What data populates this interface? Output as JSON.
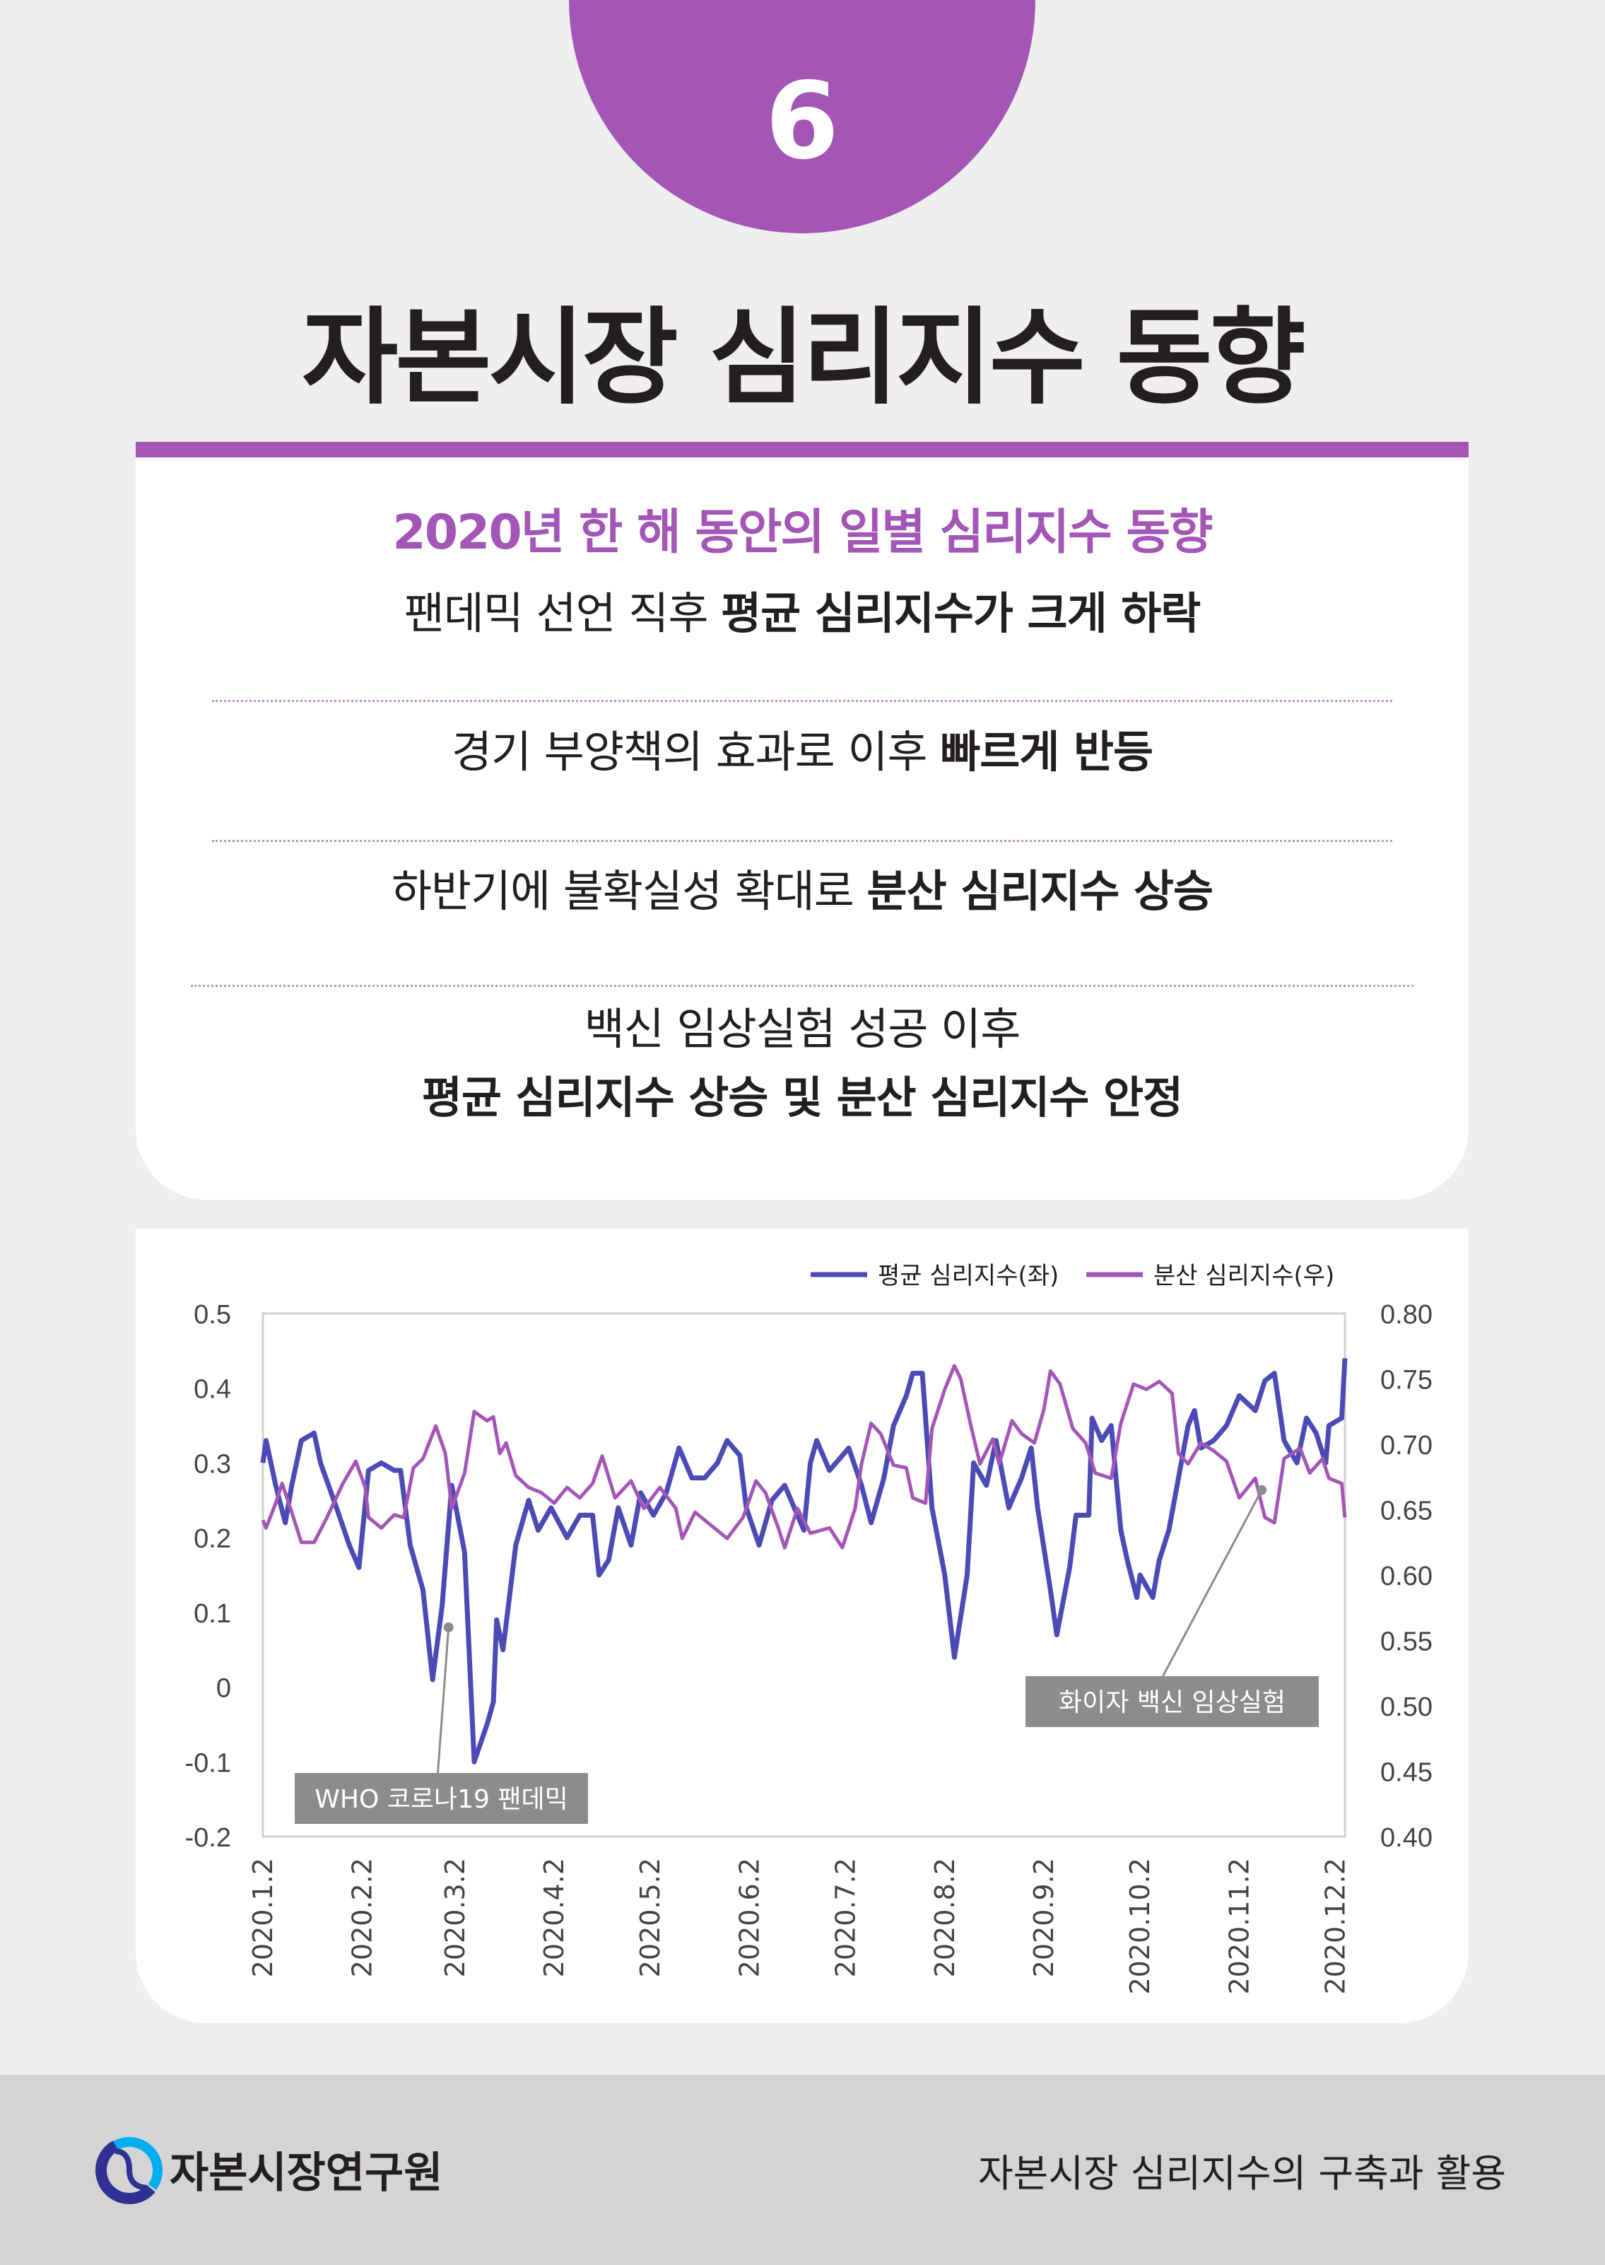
{
  "header": {
    "number": "6",
    "title": "자본시장 심리지수 동향"
  },
  "summary": {
    "subtitle": "2020년 한 해 동안의 일별 심리지수 동향",
    "lines": [
      {
        "normal": "팬데믹 선언 직후 ",
        "bold": "평균 심리지수가 크게 하락"
      },
      {
        "normal": "경기 부양책의 효과로 이후 ",
        "bold": "빠르게 반등"
      },
      {
        "normal": "하반기에 불확실성 확대로 ",
        "bold": "분산 심리지수 상승"
      },
      {
        "normal": "백신 임상실험 성공 이후",
        "bold": "평균 심리지수 상승 및 분산 심리지수 안정"
      }
    ]
  },
  "chart_data": {
    "type": "line",
    "xlim": [
      "2020-01-02",
      "2020-12-05"
    ],
    "x_ticks": [
      "2020.1.2",
      "2020.2.2",
      "2020.3.2",
      "2020.4.2",
      "2020.5.2",
      "2020.6.2",
      "2020.7.2",
      "2020.8.2",
      "2020.9.2",
      "2020.10.2",
      "2020.11.2",
      "2020.12.2"
    ],
    "y_left": {
      "ylim": [
        -0.2,
        0.5
      ],
      "ticks": [
        "0.5",
        "0.4",
        "0.3",
        "0.2",
        "0.1",
        "0",
        "-0.1",
        "-0.2"
      ]
    },
    "y_right": {
      "ylim": [
        0.4,
        0.8
      ],
      "ticks": [
        "0.80",
        "0.75",
        "0.70",
        "0.65",
        "0.60",
        "0.55",
        "0.50",
        "0.45",
        "0.40"
      ]
    },
    "legend_position": "top-right",
    "grid": false,
    "series": [
      {
        "name": "평균 심리지수(좌)",
        "axis": "left",
        "color": "#4b4bb5",
        "points": [
          [
            "2020-01-02",
            0.3
          ],
          [
            "2020-01-03",
            0.33
          ],
          [
            "2020-01-06",
            0.27
          ],
          [
            "2020-01-09",
            0.22
          ],
          [
            "2020-01-11",
            0.27
          ],
          [
            "2020-01-14",
            0.33
          ],
          [
            "2020-01-18",
            0.34
          ],
          [
            "2020-01-20",
            0.3
          ],
          [
            "2020-01-25",
            0.24
          ],
          [
            "2020-01-29",
            0.19
          ],
          [
            "2020-02-01",
            0.16
          ],
          [
            "2020-02-04",
            0.29
          ],
          [
            "2020-02-08",
            0.3
          ],
          [
            "2020-02-12",
            0.29
          ],
          [
            "2020-02-14",
            0.29
          ],
          [
            "2020-02-17",
            0.19
          ],
          [
            "2020-02-21",
            0.13
          ],
          [
            "2020-02-24",
            0.01
          ],
          [
            "2020-02-27",
            0.11
          ],
          [
            "2020-03-01",
            0.27
          ],
          [
            "2020-03-05",
            0.18
          ],
          [
            "2020-03-08",
            -0.1
          ],
          [
            "2020-03-12",
            -0.05
          ],
          [
            "2020-03-14",
            -0.02
          ],
          [
            "2020-03-15",
            0.09
          ],
          [
            "2020-03-17",
            0.05
          ],
          [
            "2020-03-21",
            0.19
          ],
          [
            "2020-03-25",
            0.25
          ],
          [
            "2020-03-28",
            0.21
          ],
          [
            "2020-04-01",
            0.24
          ],
          [
            "2020-04-06",
            0.2
          ],
          [
            "2020-04-10",
            0.23
          ],
          [
            "2020-04-14",
            0.23
          ],
          [
            "2020-04-16",
            0.15
          ],
          [
            "2020-04-19",
            0.17
          ],
          [
            "2020-04-22",
            0.24
          ],
          [
            "2020-04-26",
            0.19
          ],
          [
            "2020-04-29",
            0.26
          ],
          [
            "2020-05-03",
            0.23
          ],
          [
            "2020-05-07",
            0.26
          ],
          [
            "2020-05-11",
            0.32
          ],
          [
            "2020-05-15",
            0.28
          ],
          [
            "2020-05-19",
            0.28
          ],
          [
            "2020-05-23",
            0.3
          ],
          [
            "2020-05-26",
            0.33
          ],
          [
            "2020-05-30",
            0.31
          ],
          [
            "2020-06-01",
            0.24
          ],
          [
            "2020-06-05",
            0.19
          ],
          [
            "2020-06-09",
            0.25
          ],
          [
            "2020-06-13",
            0.27
          ],
          [
            "2020-06-19",
            0.21
          ],
          [
            "2020-06-21",
            0.3
          ],
          [
            "2020-06-23",
            0.33
          ],
          [
            "2020-06-27",
            0.29
          ],
          [
            "2020-07-01",
            0.31
          ],
          [
            "2020-07-03",
            0.32
          ],
          [
            "2020-07-07",
            0.27
          ],
          [
            "2020-07-10",
            0.22
          ],
          [
            "2020-07-14",
            0.28
          ],
          [
            "2020-07-17",
            0.35
          ],
          [
            "2020-07-21",
            0.39
          ],
          [
            "2020-07-23",
            0.42
          ],
          [
            "2020-07-26",
            0.42
          ],
          [
            "2020-07-29",
            0.24
          ],
          [
            "2020-08-02",
            0.15
          ],
          [
            "2020-08-05",
            0.04
          ],
          [
            "2020-08-09",
            0.15
          ],
          [
            "2020-08-11",
            0.3
          ],
          [
            "2020-08-15",
            0.27
          ],
          [
            "2020-08-18",
            0.33
          ],
          [
            "2020-08-22",
            0.24
          ],
          [
            "2020-08-26",
            0.28
          ],
          [
            "2020-08-29",
            0.32
          ],
          [
            "2020-08-31",
            0.24
          ],
          [
            "2020-09-04",
            0.13
          ],
          [
            "2020-09-06",
            0.07
          ],
          [
            "2020-09-10",
            0.16
          ],
          [
            "2020-09-12",
            0.23
          ],
          [
            "2020-09-16",
            0.23
          ],
          [
            "2020-09-17",
            0.36
          ],
          [
            "2020-09-20",
            0.33
          ],
          [
            "2020-09-23",
            0.35
          ],
          [
            "2020-09-26",
            0.21
          ],
          [
            "2020-09-28",
            0.17
          ],
          [
            "2020-10-01",
            0.12
          ],
          [
            "2020-10-02",
            0.15
          ],
          [
            "2020-10-06",
            0.12
          ],
          [
            "2020-10-08",
            0.17
          ],
          [
            "2020-10-11",
            0.21
          ],
          [
            "2020-10-14",
            0.28
          ],
          [
            "2020-10-17",
            0.35
          ],
          [
            "2020-10-19",
            0.37
          ],
          [
            "2020-10-21",
            0.32
          ],
          [
            "2020-10-25",
            0.33
          ],
          [
            "2020-10-29",
            0.35
          ],
          [
            "2020-11-02",
            0.39
          ],
          [
            "2020-11-07",
            0.37
          ],
          [
            "2020-11-10",
            0.41
          ],
          [
            "2020-11-13",
            0.42
          ],
          [
            "2020-11-16",
            0.33
          ],
          [
            "2020-11-20",
            0.3
          ],
          [
            "2020-11-23",
            0.36
          ],
          [
            "2020-11-26",
            0.34
          ],
          [
            "2020-11-29",
            0.3
          ],
          [
            "2020-11-30",
            0.35
          ],
          [
            "2020-12-04",
            0.36
          ],
          [
            "2020-12-05",
            0.44
          ]
        ]
      },
      {
        "name": "분산 심리지수(우)",
        "axis": "right",
        "color": "#a456b7",
        "points": [
          [
            "2020-01-02",
            0.642
          ],
          [
            "2020-01-03",
            0.636
          ],
          [
            "2020-01-06",
            0.655
          ],
          [
            "2020-01-08",
            0.67
          ],
          [
            "2020-01-11",
            0.648
          ],
          [
            "2020-01-14",
            0.625
          ],
          [
            "2020-01-18",
            0.625
          ],
          [
            "2020-01-22",
            0.644
          ],
          [
            "2020-01-27",
            0.67
          ],
          [
            "2020-01-31",
            0.687
          ],
          [
            "2020-02-03",
            0.667
          ],
          [
            "2020-02-04",
            0.644
          ],
          [
            "2020-02-08",
            0.636
          ],
          [
            "2020-02-12",
            0.646
          ],
          [
            "2020-02-15",
            0.644
          ],
          [
            "2020-02-18",
            0.682
          ],
          [
            "2020-02-21",
            0.689
          ],
          [
            "2020-02-25",
            0.714
          ],
          [
            "2020-02-28",
            0.693
          ],
          [
            "2020-03-01",
            0.651
          ],
          [
            "2020-03-05",
            0.678
          ],
          [
            "2020-03-08",
            0.725
          ],
          [
            "2020-03-12",
            0.718
          ],
          [
            "2020-03-14",
            0.721
          ],
          [
            "2020-03-16",
            0.693
          ],
          [
            "2020-03-18",
            0.701
          ],
          [
            "2020-03-21",
            0.676
          ],
          [
            "2020-03-25",
            0.667
          ],
          [
            "2020-03-29",
            0.663
          ],
          [
            "2020-04-02",
            0.655
          ],
          [
            "2020-04-06",
            0.667
          ],
          [
            "2020-04-10",
            0.659
          ],
          [
            "2020-04-14",
            0.67
          ],
          [
            "2020-04-17",
            0.691
          ],
          [
            "2020-04-21",
            0.659
          ],
          [
            "2020-04-26",
            0.672
          ],
          [
            "2020-04-30",
            0.651
          ],
          [
            "2020-05-05",
            0.667
          ],
          [
            "2020-05-10",
            0.651
          ],
          [
            "2020-05-12",
            0.628
          ],
          [
            "2020-05-16",
            0.648
          ],
          [
            "2020-05-20",
            0.64
          ],
          [
            "2020-05-26",
            0.628
          ],
          [
            "2020-05-31",
            0.644
          ],
          [
            "2020-06-04",
            0.672
          ],
          [
            "2020-06-07",
            0.663
          ],
          [
            "2020-06-11",
            0.636
          ],
          [
            "2020-06-13",
            0.621
          ],
          [
            "2020-06-17",
            0.651
          ],
          [
            "2020-06-21",
            0.632
          ],
          [
            "2020-06-27",
            0.636
          ],
          [
            "2020-07-01",
            0.621
          ],
          [
            "2020-07-05",
            0.651
          ],
          [
            "2020-07-07",
            0.685
          ],
          [
            "2020-07-10",
            0.716
          ],
          [
            "2020-07-13",
            0.708
          ],
          [
            "2020-07-17",
            0.684
          ],
          [
            "2020-07-21",
            0.682
          ],
          [
            "2020-07-23",
            0.659
          ],
          [
            "2020-07-27",
            0.655
          ],
          [
            "2020-07-29",
            0.712
          ],
          [
            "2020-08-02",
            0.742
          ],
          [
            "2020-08-05",
            0.76
          ],
          [
            "2020-08-07",
            0.75
          ],
          [
            "2020-08-10",
            0.716
          ],
          [
            "2020-08-13",
            0.685
          ],
          [
            "2020-08-17",
            0.704
          ],
          [
            "2020-08-19",
            0.685
          ],
          [
            "2020-08-23",
            0.718
          ],
          [
            "2020-08-26",
            0.708
          ],
          [
            "2020-08-30",
            0.701
          ],
          [
            "2020-09-02",
            0.727
          ],
          [
            "2020-09-04",
            0.756
          ],
          [
            "2020-09-07",
            0.746
          ],
          [
            "2020-09-11",
            0.712
          ],
          [
            "2020-09-15",
            0.701
          ],
          [
            "2020-09-18",
            0.678
          ],
          [
            "2020-09-23",
            0.674
          ],
          [
            "2020-09-26",
            0.716
          ],
          [
            "2020-09-30",
            0.746
          ],
          [
            "2020-10-04",
            0.742
          ],
          [
            "2020-10-08",
            0.748
          ],
          [
            "2020-10-12",
            0.739
          ],
          [
            "2020-10-14",
            0.693
          ],
          [
            "2020-10-17",
            0.685
          ],
          [
            "2020-10-21",
            0.701
          ],
          [
            "2020-10-25",
            0.695
          ],
          [
            "2020-10-29",
            0.687
          ],
          [
            "2020-11-02",
            0.659
          ],
          [
            "2020-11-07",
            0.674
          ],
          [
            "2020-11-10",
            0.644
          ],
          [
            "2020-11-13",
            0.64
          ],
          [
            "2020-11-16",
            0.689
          ],
          [
            "2020-11-21",
            0.697
          ],
          [
            "2020-11-24",
            0.678
          ],
          [
            "2020-11-28",
            0.689
          ],
          [
            "2020-11-30",
            0.674
          ],
          [
            "2020-12-04",
            0.67
          ],
          [
            "2020-12-05",
            0.644
          ]
        ]
      }
    ],
    "annotations": [
      {
        "text": "WHO 코로나19 팬데믹",
        "date": "2020-02-29",
        "value": 0.08,
        "axis": "left"
      },
      {
        "text": "화이자 백신 임상실험",
        "date": "2020-11-09",
        "value": 0.665,
        "axis": "right"
      }
    ]
  },
  "footer": {
    "org_name": "자본시장연구원",
    "report_title": "자본시장 심리지수의 구축과 활용"
  }
}
